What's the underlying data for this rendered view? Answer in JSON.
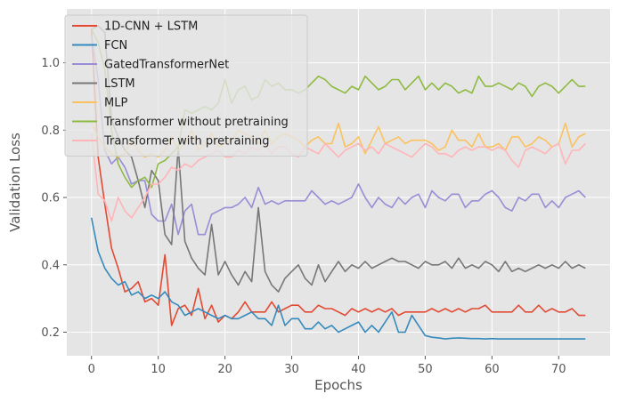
{
  "chart_data": {
    "type": "line",
    "xlabel": "Epochs",
    "ylabel": "Validation Loss",
    "xlim": [
      -3.7,
      77.7
    ],
    "ylim": [
      0.13,
      1.16
    ],
    "xticks": [
      0,
      10,
      20,
      30,
      40,
      50,
      60,
      70
    ],
    "yticks": [
      0.2,
      0.4,
      0.6,
      0.8,
      1.0
    ],
    "ytick_labels": [
      "0.2",
      "0.4",
      "0.6",
      "0.8",
      "1.0"
    ],
    "grid": true,
    "legend_position": "top-left",
    "x": [
      0,
      1,
      2,
      3,
      4,
      5,
      6,
      7,
      8,
      9,
      10,
      11,
      12,
      13,
      14,
      15,
      16,
      17,
      18,
      19,
      20,
      21,
      22,
      23,
      24,
      25,
      26,
      27,
      28,
      29,
      30,
      31,
      32,
      33,
      34,
      35,
      36,
      37,
      38,
      39,
      40,
      41,
      42,
      43,
      44,
      45,
      46,
      47,
      48,
      49,
      50,
      51,
      52,
      53,
      54,
      55,
      56,
      57,
      58,
      59,
      60,
      61,
      62,
      63,
      64,
      65,
      66,
      67,
      68,
      69,
      70,
      71,
      72,
      73,
      74
    ],
    "series": [
      {
        "name": "1D-CNN + LSTM",
        "color": "#E24A33",
        "values": [
          1.1,
          0.72,
          0.58,
          0.45,
          0.39,
          0.32,
          0.33,
          0.35,
          0.29,
          0.3,
          0.28,
          0.43,
          0.22,
          0.27,
          0.28,
          0.25,
          0.33,
          0.24,
          0.28,
          0.23,
          0.25,
          0.24,
          0.26,
          0.29,
          0.26,
          0.26,
          0.26,
          0.29,
          0.26,
          0.27,
          0.28,
          0.28,
          0.26,
          0.26,
          0.28,
          0.27,
          0.27,
          0.26,
          0.25,
          0.27,
          0.26,
          0.27,
          0.26,
          0.27,
          0.26,
          0.27,
          0.25,
          0.26,
          0.26,
          0.26,
          0.26,
          0.27,
          0.26,
          0.27,
          0.26,
          0.27,
          0.26,
          0.27,
          0.27,
          0.28,
          0.26,
          0.26,
          0.26,
          0.26,
          0.28,
          0.26,
          0.26,
          0.28,
          0.26,
          0.27,
          0.26,
          0.26,
          0.27,
          0.25,
          0.25
        ]
      },
      {
        "name": "FCN",
        "color": "#348ABD",
        "values": [
          0.54,
          0.44,
          0.39,
          0.36,
          0.34,
          0.35,
          0.31,
          0.32,
          0.3,
          0.31,
          0.3,
          0.32,
          0.29,
          0.28,
          0.25,
          0.26,
          0.27,
          0.26,
          0.25,
          0.24,
          0.25,
          0.24,
          0.24,
          0.25,
          0.26,
          0.24,
          0.24,
          0.22,
          0.28,
          0.22,
          0.24,
          0.24,
          0.21,
          0.21,
          0.23,
          0.21,
          0.22,
          0.2,
          0.21,
          0.22,
          0.23,
          0.2,
          0.22,
          0.2,
          0.23,
          0.26,
          0.2,
          0.2,
          0.25,
          0.22,
          0.19,
          0.185,
          0.183,
          0.18,
          0.182,
          0.183,
          0.182,
          0.181,
          0.181,
          0.18,
          0.181,
          0.18,
          0.18,
          0.18,
          0.18,
          0.18,
          0.18,
          0.18,
          0.18,
          0.18,
          0.18,
          0.18,
          0.18,
          0.18,
          0.18
        ]
      },
      {
        "name": "GatedTransformerNet",
        "color": "#988ED5",
        "values": [
          1.08,
          0.95,
          0.74,
          0.7,
          0.72,
          0.69,
          0.64,
          0.65,
          0.65,
          0.55,
          0.53,
          0.53,
          0.58,
          0.49,
          0.56,
          0.58,
          0.49,
          0.49,
          0.55,
          0.56,
          0.57,
          0.57,
          0.58,
          0.6,
          0.57,
          0.63,
          0.58,
          0.59,
          0.58,
          0.59,
          0.59,
          0.59,
          0.59,
          0.62,
          0.6,
          0.58,
          0.59,
          0.58,
          0.59,
          0.6,
          0.64,
          0.6,
          0.57,
          0.6,
          0.58,
          0.57,
          0.6,
          0.58,
          0.6,
          0.61,
          0.57,
          0.62,
          0.6,
          0.59,
          0.61,
          0.61,
          0.57,
          0.59,
          0.59,
          0.61,
          0.62,
          0.6,
          0.57,
          0.56,
          0.6,
          0.59,
          0.61,
          0.61,
          0.57,
          0.59,
          0.57,
          0.6,
          0.61,
          0.62,
          0.6
        ]
      },
      {
        "name": "LSTM",
        "color": "#777777",
        "values": [
          1.1,
          1.11,
          1.09,
          0.83,
          0.78,
          0.74,
          0.72,
          0.65,
          0.57,
          0.68,
          0.65,
          0.49,
          0.46,
          0.75,
          0.47,
          0.42,
          0.39,
          0.37,
          0.52,
          0.37,
          0.41,
          0.37,
          0.34,
          0.38,
          0.35,
          0.57,
          0.38,
          0.34,
          0.32,
          0.36,
          0.38,
          0.4,
          0.36,
          0.34,
          0.4,
          0.35,
          0.38,
          0.41,
          0.38,
          0.4,
          0.39,
          0.41,
          0.39,
          0.4,
          0.41,
          0.42,
          0.41,
          0.41,
          0.4,
          0.39,
          0.41,
          0.4,
          0.4,
          0.41,
          0.39,
          0.42,
          0.39,
          0.4,
          0.39,
          0.41,
          0.4,
          0.38,
          0.41,
          0.38,
          0.39,
          0.38,
          0.39,
          0.4,
          0.39,
          0.4,
          0.39,
          0.41,
          0.39,
          0.4,
          0.39
        ]
      },
      {
        "name": "MLP",
        "color": "#FBC15E",
        "values": [
          0.82,
          0.78,
          0.75,
          0.73,
          0.72,
          0.73,
          0.77,
          0.74,
          0.72,
          0.73,
          0.72,
          0.74,
          0.78,
          0.74,
          0.76,
          0.8,
          0.74,
          0.76,
          0.79,
          0.75,
          0.76,
          0.77,
          0.8,
          0.79,
          0.78,
          0.76,
          0.8,
          0.76,
          0.78,
          0.79,
          0.78,
          0.77,
          0.75,
          0.77,
          0.78,
          0.76,
          0.76,
          0.82,
          0.75,
          0.76,
          0.78,
          0.73,
          0.77,
          0.81,
          0.76,
          0.77,
          0.78,
          0.76,
          0.77,
          0.77,
          0.77,
          0.76,
          0.74,
          0.75,
          0.8,
          0.77,
          0.77,
          0.75,
          0.79,
          0.75,
          0.75,
          0.76,
          0.74,
          0.78,
          0.78,
          0.75,
          0.76,
          0.78,
          0.77,
          0.75,
          0.76,
          0.82,
          0.75,
          0.78,
          0.79
        ]
      },
      {
        "name": "Transformer without pretraining",
        "color": "#8EBA42",
        "values": [
          1.1,
          1.06,
          0.98,
          0.8,
          0.7,
          0.66,
          0.63,
          0.65,
          0.66,
          0.63,
          0.7,
          0.71,
          0.73,
          0.75,
          0.86,
          0.85,
          0.86,
          0.87,
          0.86,
          0.88,
          0.95,
          0.88,
          0.92,
          0.93,
          0.89,
          0.9,
          0.95,
          0.93,
          0.94,
          0.92,
          0.92,
          0.91,
          0.92,
          0.94,
          0.96,
          0.95,
          0.93,
          0.92,
          0.91,
          0.93,
          0.92,
          0.96,
          0.94,
          0.92,
          0.93,
          0.95,
          0.95,
          0.92,
          0.94,
          0.96,
          0.92,
          0.94,
          0.92,
          0.94,
          0.93,
          0.91,
          0.92,
          0.91,
          0.96,
          0.93,
          0.93,
          0.94,
          0.93,
          0.92,
          0.94,
          0.93,
          0.9,
          0.93,
          0.94,
          0.93,
          0.91,
          0.93,
          0.95,
          0.93,
          0.93
        ]
      },
      {
        "name": "Transformer with pretraining",
        "color": "#FFB5B8",
        "values": [
          0.79,
          0.61,
          0.59,
          0.53,
          0.6,
          0.56,
          0.54,
          0.57,
          0.6,
          0.64,
          0.64,
          0.66,
          0.69,
          0.68,
          0.7,
          0.69,
          0.71,
          0.72,
          0.73,
          0.74,
          0.72,
          0.72,
          0.74,
          0.73,
          0.75,
          0.74,
          0.76,
          0.73,
          0.75,
          0.75,
          0.73,
          0.72,
          0.75,
          0.74,
          0.73,
          0.76,
          0.74,
          0.72,
          0.74,
          0.75,
          0.76,
          0.74,
          0.75,
          0.73,
          0.76,
          0.75,
          0.74,
          0.73,
          0.72,
          0.74,
          0.76,
          0.75,
          0.73,
          0.73,
          0.72,
          0.74,
          0.75,
          0.74,
          0.75,
          0.75,
          0.74,
          0.75,
          0.74,
          0.71,
          0.69,
          0.74,
          0.75,
          0.74,
          0.73,
          0.75,
          0.76,
          0.7,
          0.74,
          0.74,
          0.76
        ]
      }
    ]
  }
}
